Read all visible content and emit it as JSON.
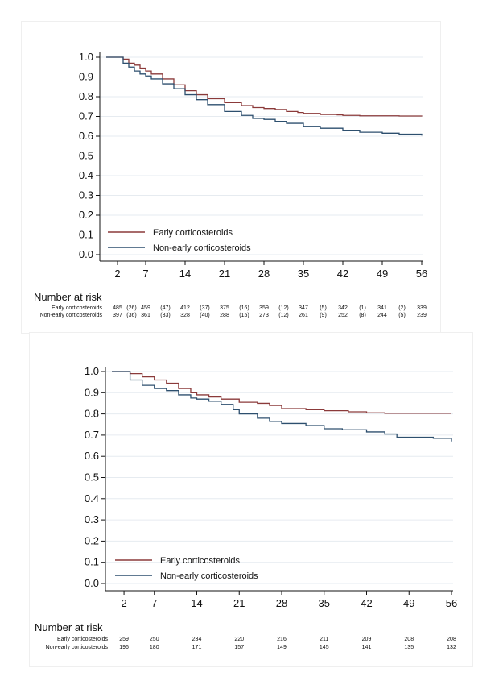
{
  "chart_data": [
    {
      "type": "line",
      "xlim": [
        0,
        56
      ],
      "ylim": [
        0,
        1
      ],
      "x_ticks": [
        "2",
        "7",
        "14",
        "21",
        "28",
        "35",
        "42",
        "49",
        "56"
      ],
      "y_ticks": [
        "0.0",
        "0.1",
        "0.2",
        "0.3",
        "0.4",
        "0.5",
        "0.6",
        "0.7",
        "0.8",
        "0.9",
        "1.0"
      ],
      "grid": true,
      "legend_position": "bottom-left",
      "series": [
        {
          "name": "Early corticosteroids",
          "color": "#8b3a3a",
          "x": [
            0,
            2,
            3,
            4,
            5,
            6,
            7,
            8,
            10,
            12,
            14,
            16,
            18,
            21,
            24,
            26,
            28,
            30,
            32,
            34,
            35,
            38,
            41,
            42,
            45,
            49,
            52,
            56
          ],
          "y": [
            1.0,
            1.0,
            0.99,
            0.97,
            0.96,
            0.945,
            0.93,
            0.915,
            0.89,
            0.86,
            0.83,
            0.81,
            0.79,
            0.77,
            0.755,
            0.745,
            0.74,
            0.735,
            0.725,
            0.72,
            0.715,
            0.71,
            0.708,
            0.705,
            0.703,
            0.703,
            0.702,
            0.7
          ]
        },
        {
          "name": "Non-early corticosteroids",
          "color": "#2d4f6e",
          "x": [
            0,
            2,
            3,
            4,
            5,
            6,
            7,
            8,
            10,
            12,
            14,
            16,
            18,
            21,
            24,
            26,
            28,
            30,
            32,
            35,
            38,
            42,
            45,
            49,
            52,
            56
          ],
          "y": [
            1.0,
            1.0,
            0.97,
            0.95,
            0.93,
            0.915,
            0.905,
            0.89,
            0.865,
            0.84,
            0.81,
            0.785,
            0.76,
            0.725,
            0.705,
            0.69,
            0.685,
            0.675,
            0.665,
            0.65,
            0.64,
            0.63,
            0.62,
            0.615,
            0.61,
            0.603
          ]
        }
      ],
      "risk_table": {
        "title": "Number at risk",
        "rows": [
          {
            "label": "Early corticosteroids",
            "cells": [
              "485",
              "(26)",
              "459",
              "(47)",
              "412",
              "(37)",
              "375",
              "(16)",
              "359",
              "(12)",
              "347",
              "(5)",
              "342",
              "(1)",
              "341",
              "(2)",
              "339"
            ]
          },
          {
            "label": "Non-early corticosteroids",
            "cells": [
              "397",
              "(36)",
              "361",
              "(33)",
              "328",
              "(40)",
              "288",
              "(15)",
              "273",
              "(12)",
              "261",
              "(9)",
              "252",
              "(8)",
              "244",
              "(5)",
              "239"
            ]
          }
        ]
      }
    },
    {
      "type": "line",
      "xlim": [
        0,
        56
      ],
      "ylim": [
        0,
        1
      ],
      "x_ticks": [
        "2",
        "7",
        "14",
        "21",
        "28",
        "35",
        "42",
        "49",
        "56"
      ],
      "y_ticks": [
        "0.0",
        "0.1",
        "0.2",
        "0.3",
        "0.4",
        "0.5",
        "0.6",
        "0.7",
        "0.8",
        "0.9",
        "1.0"
      ],
      "grid": true,
      "legend_position": "bottom-left",
      "series": [
        {
          "name": "Early corticosteroids",
          "color": "#8b3a3a",
          "x": [
            0,
            2,
            3,
            5,
            7,
            9,
            11,
            13,
            14,
            16,
            18,
            21,
            24,
            26,
            28,
            32,
            35,
            39,
            42,
            45,
            49,
            56
          ],
          "y": [
            1.0,
            1.0,
            0.99,
            0.975,
            0.96,
            0.945,
            0.92,
            0.9,
            0.89,
            0.88,
            0.87,
            0.855,
            0.85,
            0.84,
            0.825,
            0.82,
            0.815,
            0.81,
            0.805,
            0.803,
            0.803,
            0.803
          ]
        },
        {
          "name": "Non-early corticosteroids",
          "color": "#2d4f6e",
          "x": [
            0,
            2,
            3,
            5,
            7,
            9,
            11,
            13,
            14,
            16,
            18,
            20,
            21,
            24,
            26,
            28,
            32,
            35,
            38,
            42,
            45,
            47,
            49,
            53,
            56
          ],
          "y": [
            1.0,
            1.0,
            0.96,
            0.935,
            0.92,
            0.91,
            0.89,
            0.875,
            0.87,
            0.86,
            0.845,
            0.82,
            0.8,
            0.78,
            0.765,
            0.755,
            0.745,
            0.73,
            0.725,
            0.715,
            0.705,
            0.69,
            0.69,
            0.685,
            0.67
          ]
        }
      ],
      "risk_table": {
        "title": "Number at risk",
        "rows": [
          {
            "label": "Early corticosteroids",
            "cells": [
              "259",
              "250",
              "234",
              "220",
              "216",
              "211",
              "209",
              "208",
              "208"
            ]
          },
          {
            "label": "Non-early corticosteroids",
            "cells": [
              "196",
              "180",
              "171",
              "157",
              "149",
              "145",
              "141",
              "135",
              "132"
            ]
          }
        ]
      }
    }
  ]
}
